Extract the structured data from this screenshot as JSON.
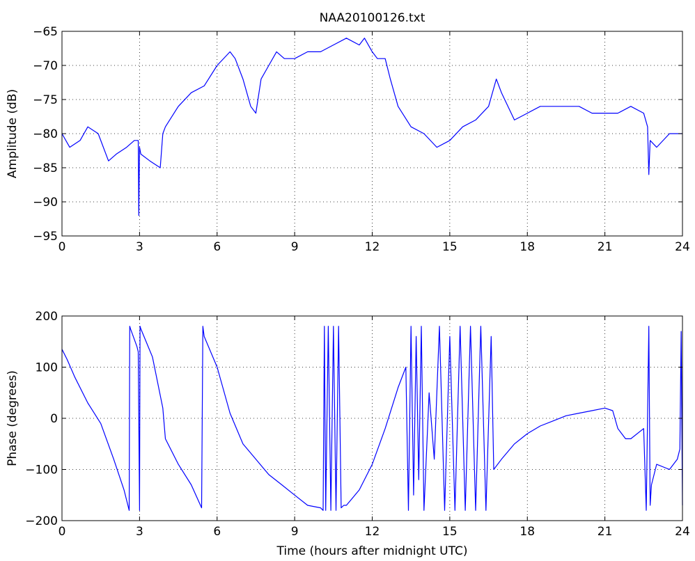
{
  "chart_data": [
    {
      "type": "line",
      "title": "NAA20100126.txt",
      "xlabel": "",
      "ylabel": "Amplitude (dB)",
      "xlim": [
        0,
        24
      ],
      "ylim": [
        -95,
        -65
      ],
      "xticks": [
        0,
        3,
        6,
        9,
        12,
        15,
        18,
        21,
        24
      ],
      "yticks": [
        -95,
        -90,
        -85,
        -80,
        -75,
        -70,
        -65
      ],
      "grid": true,
      "color": "#0000FF",
      "series": [
        {
          "x": [
            0,
            0.3,
            0.7,
            1.0,
            1.4,
            1.8,
            2.1,
            2.5,
            2.8,
            2.95,
            2.97,
            3.0,
            3.05,
            3.4,
            3.8,
            3.9,
            4.0,
            4.5,
            5.0,
            5.5,
            6.0,
            6.5,
            6.7,
            7.0,
            7.3,
            7.5,
            7.7,
            8.0,
            8.3,
            8.6,
            9.0,
            9.5,
            10.0,
            10.5,
            11.0,
            11.5,
            11.7,
            12.0,
            12.2,
            12.5,
            12.7,
            13.0,
            13.5,
            14.0,
            14.5,
            15.0,
            15.5,
            16.0,
            16.5,
            16.8,
            17.0,
            17.5,
            18.0,
            18.5,
            19.0,
            19.5,
            20.0,
            20.5,
            21.0,
            21.5,
            22.0,
            22.5,
            22.65,
            22.7,
            22.75,
            23.0,
            23.5,
            24.0
          ],
          "y": [
            -80,
            -82,
            -81,
            -79,
            -80,
            -84,
            -83,
            -82,
            -81,
            -81,
            -92,
            -82,
            -83,
            -84,
            -85,
            -80,
            -79,
            -76,
            -74,
            -73,
            -70,
            -68,
            -69,
            -72,
            -76,
            -77,
            -72,
            -70,
            -68,
            -69,
            -69,
            -68,
            -68,
            -67,
            -66,
            -67,
            -66,
            -68,
            -69,
            -69,
            -72,
            -76,
            -79,
            -80,
            -82,
            -81,
            -79,
            -78,
            -76,
            -72,
            -74,
            -78,
            -77,
            -76,
            -76,
            -76,
            -76,
            -77,
            -77,
            -77,
            -76,
            -77,
            -79,
            -86,
            -81,
            -82,
            -80,
            -80
          ]
        }
      ]
    },
    {
      "type": "line",
      "title": "",
      "xlabel": "Time (hours after midnight UTC)",
      "ylabel": "Phase (degrees)",
      "xlim": [
        0,
        24
      ],
      "ylim": [
        -200,
        200
      ],
      "xticks": [
        0,
        3,
        6,
        9,
        12,
        15,
        18,
        21,
        24
      ],
      "yticks": [
        -200,
        -100,
        0,
        100,
        200
      ],
      "grid": true,
      "color": "#0000FF",
      "series": [
        {
          "x": [
            0,
            0.2,
            0.5,
            1.0,
            1.5,
            2.0,
            2.4,
            2.6,
            2.62,
            2.65,
            2.9,
            2.95,
            3.0,
            3.02,
            3.05,
            3.5,
            3.9,
            4.0,
            4.5,
            5.0,
            5.4,
            5.45,
            5.5,
            6.0,
            6.5,
            7.0,
            7.5,
            8.0,
            8.5,
            9.0,
            9.5,
            10.0,
            10.1,
            10.15,
            10.2,
            10.3,
            10.4,
            10.5,
            10.6,
            10.7,
            10.8,
            10.9,
            11.0,
            11.5,
            12.0,
            12.5,
            13.0,
            13.3,
            13.4,
            13.5,
            13.6,
            13.7,
            13.8,
            13.9,
            14.0,
            14.2,
            14.4,
            14.6,
            14.8,
            15.0,
            15.2,
            15.4,
            15.6,
            15.8,
            16.0,
            16.2,
            16.4,
            16.6,
            16.7,
            17.0,
            17.5,
            18.0,
            18.5,
            19.0,
            19.5,
            20.0,
            20.5,
            21.0,
            21.3,
            21.5,
            21.8,
            22.0,
            22.5,
            22.6,
            22.7,
            22.75,
            22.8,
            23.0,
            23.5,
            23.8,
            23.9,
            23.95,
            24.0
          ],
          "y": [
            135,
            115,
            80,
            30,
            -10,
            -80,
            -140,
            -180,
            180,
            175,
            140,
            130,
            -180,
            180,
            175,
            120,
            20,
            -40,
            -90,
            -130,
            -175,
            180,
            160,
            100,
            10,
            -50,
            -80,
            -110,
            -130,
            -150,
            -170,
            -175,
            -180,
            180,
            -180,
            180,
            -180,
            180,
            -180,
            180,
            -175,
            -170,
            -170,
            -140,
            -90,
            -20,
            60,
            100,
            -180,
            180,
            -150,
            160,
            -120,
            180,
            -180,
            50,
            -80,
            180,
            -180,
            160,
            -180,
            180,
            -180,
            180,
            -180,
            180,
            -180,
            160,
            -100,
            -80,
            -50,
            -30,
            -15,
            -5,
            5,
            10,
            15,
            20,
            15,
            -20,
            -40,
            -40,
            -20,
            -180,
            180,
            -170,
            -130,
            -90,
            -100,
            -80,
            -60,
            170,
            -170
          ]
        }
      ]
    }
  ]
}
